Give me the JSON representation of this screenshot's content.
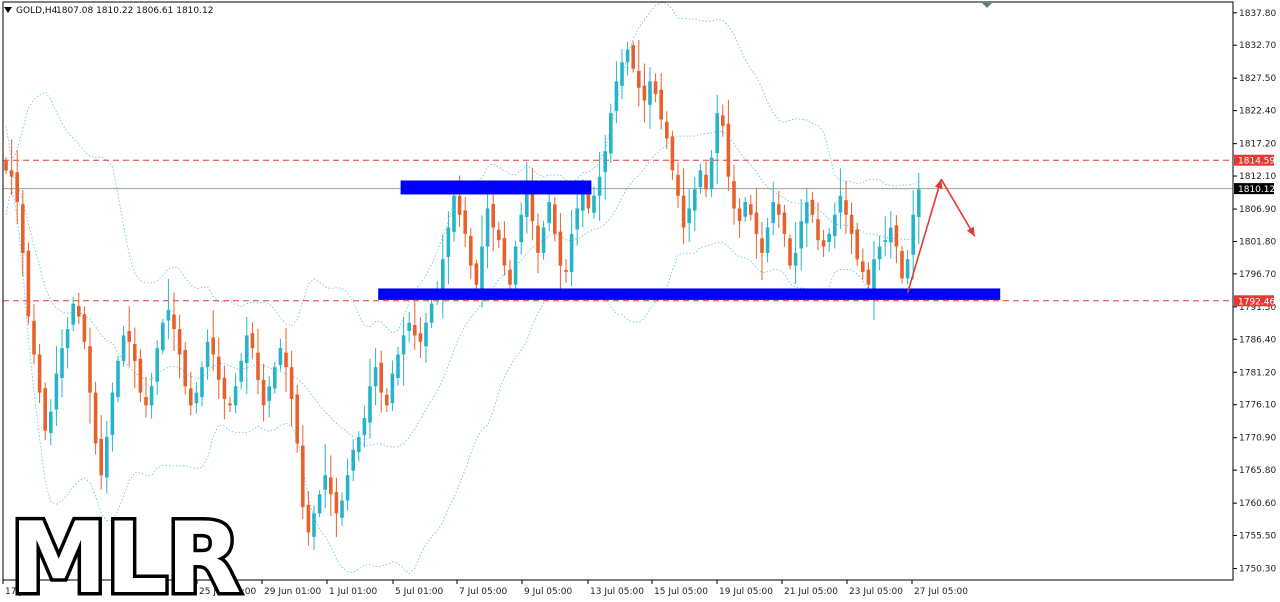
{
  "chart_data": {
    "type": "candlestick",
    "header": {
      "symbol_timeframe": "GOLD,H4",
      "ohlc": "1807.08 1810.22 1806.61 1810.12"
    },
    "ylim": [
      1748.5,
      1839.5
    ],
    "y_ticks": [
      "1837.80",
      "1832.70",
      "1827.50",
      "1822.40",
      "1817.20",
      "1812.10",
      "1806.90",
      "1801.80",
      "1796.70",
      "1791.50",
      "1786.40",
      "1781.20",
      "1776.10",
      "1770.90",
      "1765.80",
      "1760.60",
      "1755.50",
      "1750.30"
    ],
    "y_tick_values": [
      1837.8,
      1832.7,
      1827.5,
      1822.4,
      1817.2,
      1812.1,
      1806.9,
      1801.8,
      1796.7,
      1791.5,
      1786.4,
      1781.2,
      1776.1,
      1770.9,
      1765.8,
      1760.6,
      1755.5,
      1750.3
    ],
    "x_tick_labels": [
      "17 Jun",
      "25 Jun 01:00",
      "29 Jun 01:00",
      "1 Jul 01:00",
      "5 Jul 01:00",
      "7 Jul 05:00",
      "9 Jul 05:00",
      "13 Jul 05:00",
      "15 Jul 05:00",
      "19 Jul 05:00",
      "21 Jul 05:00",
      "23 Jul 05:00",
      "27 Jul 05:00"
    ],
    "horizontal_lines": [
      {
        "price": 1814.59,
        "label": "1814.59",
        "style": "dashed",
        "color": "#e53935"
      },
      {
        "price": 1810.12,
        "label": "1810.12",
        "style": "solid",
        "color": "#9e9e9e",
        "label_bg": "#000000"
      },
      {
        "price": 1792.46,
        "label": "1792.46",
        "style": "dashed",
        "color": "#e53935"
      }
    ],
    "zones": [
      {
        "from_bar": 71,
        "to_bar": 104,
        "low": 1809.2,
        "high": 1811.4,
        "color": "#0000ff"
      },
      {
        "from_bar": 67,
        "to_bar": 177,
        "low": 1792.6,
        "high": 1794.4,
        "color": "#0000ff"
      }
    ],
    "projection": [
      {
        "bar": 161,
        "price": 1793.7
      },
      {
        "bar": 167,
        "price": 1811.6
      },
      {
        "bar": 173,
        "price": 1802.6
      }
    ],
    "colors": {
      "bull": "#26b4cc",
      "bear": "#e8612c",
      "bands": "#6ec6e6",
      "projection": "#e53935",
      "zone": "#0000ff"
    },
    "bollinger_bands": true,
    "candles_close": [
      1813,
      1812,
      1808,
      1800,
      1790,
      1784,
      1778,
      1772,
      1775,
      1781,
      1785,
      1788,
      1792,
      1790,
      1786,
      1778,
      1770,
      1765,
      1771,
      1778,
      1783,
      1787,
      1786,
      1783,
      1778,
      1776,
      1779,
      1785,
      1789,
      1791,
      1788,
      1784,
      1779,
      1776,
      1778,
      1782,
      1786,
      1784,
      1780,
      1777,
      1776,
      1779,
      1783,
      1787,
      1785,
      1780,
      1776,
      1779,
      1782,
      1785,
      1782,
      1777,
      1770,
      1760,
      1756,
      1759,
      1762,
      1765,
      1762,
      1759,
      1761,
      1765,
      1769,
      1771,
      1774,
      1779,
      1782,
      1778,
      1776,
      1781,
      1784,
      1787,
      1789,
      1787,
      1786,
      1789,
      1792,
      1794,
      1799,
      1804,
      1809,
      1806,
      1803,
      1798,
      1795,
      1801,
      1807,
      1804,
      1802,
      1798,
      1795,
      1801,
      1806,
      1810,
      1805,
      1800,
      1804,
      1808,
      1803,
      1798,
      1797,
      1803,
      1807,
      1810,
      1807,
      1809,
      1812,
      1816,
      1822,
      1827,
      1830,
      1832,
      1829,
      1826,
      1824,
      1827,
      1825,
      1821,
      1818,
      1813,
      1809,
      1804,
      1807,
      1810,
      1813,
      1810,
      1815,
      1822,
      1820,
      1812,
      1807,
      1805,
      1808,
      1806,
      1803,
      1800,
      1804,
      1808,
      1806,
      1803,
      1798,
      1800,
      1805,
      1808,
      1806,
      1802,
      1801,
      1803,
      1806,
      1809,
      1806,
      1803,
      1799,
      1797,
      1795,
      1799,
      1801,
      1802,
      1804,
      1801,
      1796,
      1799,
      1806,
      1810
    ]
  }
}
